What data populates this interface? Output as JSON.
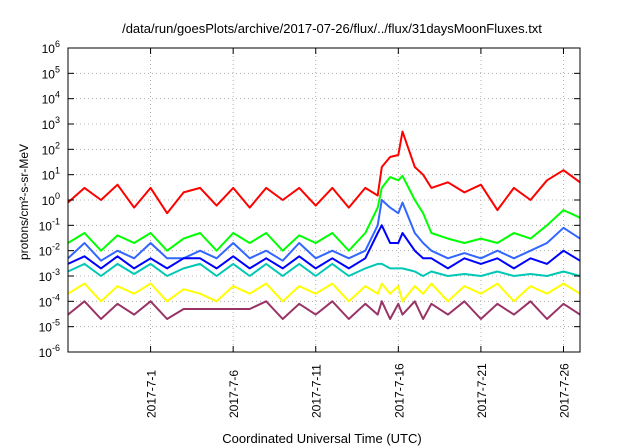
{
  "chart_data": {
    "type": "line",
    "title": "/data/run/goesPlots/archive/2017-07-26/flux/../flux/31daysMoonFluxes.txt",
    "xlabel": "Coordinated Universal Time (UTC)",
    "ylabel": "protons/cm²-s-sr-MeV",
    "yscale": "log",
    "ylim": [
      1e-06,
      1000000.0
    ],
    "xlim": [
      "2017-06-26",
      "2017-07-27"
    ],
    "grid": true,
    "legend": "none",
    "y_ticks": [
      {
        "base": "10",
        "exp": "-6"
      },
      {
        "base": "10",
        "exp": "-5"
      },
      {
        "base": "10",
        "exp": "-4"
      },
      {
        "base": "10",
        "exp": "-3"
      },
      {
        "base": "10",
        "exp": "-2"
      },
      {
        "base": "10",
        "exp": "-1"
      },
      {
        "base": "10",
        "exp": "0"
      },
      {
        "base": "10",
        "exp": "1"
      },
      {
        "base": "10",
        "exp": "2"
      },
      {
        "base": "10",
        "exp": "3"
      },
      {
        "base": "10",
        "exp": "4"
      },
      {
        "base": "10",
        "exp": "5"
      },
      {
        "base": "10",
        "exp": "6"
      }
    ],
    "x_ticks": [
      {
        "date": "2017-07-01",
        "label": "2017-7-1"
      },
      {
        "date": "2017-07-06",
        "label": "2017-7-6"
      },
      {
        "date": "2017-07-11",
        "label": "2017-7-11"
      },
      {
        "date": "2017-07-16",
        "label": "2017-7-16"
      },
      {
        "date": "2017-07-21",
        "label": "2017-7-21"
      },
      {
        "date": "2017-07-26",
        "label": "2017-7-26"
      }
    ],
    "series": [
      {
        "color": "#ff0000",
        "points": [
          [
            "2017-06-26",
            0.8
          ],
          [
            "2017-06-27",
            3
          ],
          [
            "2017-06-28",
            1
          ],
          [
            "2017-06-29",
            4
          ],
          [
            "2017-06-30",
            0.5
          ],
          [
            "2017-07-01",
            3
          ],
          [
            "2017-07-02",
            0.3
          ],
          [
            "2017-07-03",
            2
          ],
          [
            "2017-07-04",
            3
          ],
          [
            "2017-07-05",
            0.6
          ],
          [
            "2017-07-06",
            3
          ],
          [
            "2017-07-07",
            0.5
          ],
          [
            "2017-07-08",
            3
          ],
          [
            "2017-07-09",
            1
          ],
          [
            "2017-07-10",
            3
          ],
          [
            "2017-07-11",
            0.6
          ],
          [
            "2017-07-12",
            3
          ],
          [
            "2017-07-13",
            0.5
          ],
          [
            "2017-07-14",
            3
          ],
          [
            "2017-07-14T18:00",
            1.5
          ],
          [
            "2017-07-15",
            20
          ],
          [
            "2017-07-15T12:00",
            50
          ],
          [
            "2017-07-16",
            60
          ],
          [
            "2017-07-16T06:00",
            500
          ],
          [
            "2017-07-17",
            20
          ],
          [
            "2017-07-17T12:00",
            10
          ],
          [
            "2017-07-18",
            3
          ],
          [
            "2017-07-19",
            5
          ],
          [
            "2017-07-20",
            2
          ],
          [
            "2017-07-21",
            4
          ],
          [
            "2017-07-22",
            0.4
          ],
          [
            "2017-07-23",
            3
          ],
          [
            "2017-07-24",
            1
          ],
          [
            "2017-07-25",
            6
          ],
          [
            "2017-07-26",
            15
          ],
          [
            "2017-07-27",
            5
          ]
        ]
      },
      {
        "color": "#00ff00",
        "points": [
          [
            "2017-06-26",
            0.02
          ],
          [
            "2017-06-27",
            0.05
          ],
          [
            "2017-06-28",
            0.01
          ],
          [
            "2017-06-29",
            0.04
          ],
          [
            "2017-06-30",
            0.02
          ],
          [
            "2017-07-01",
            0.05
          ],
          [
            "2017-07-02",
            0.01
          ],
          [
            "2017-07-03",
            0.03
          ],
          [
            "2017-07-04",
            0.05
          ],
          [
            "2017-07-05",
            0.01
          ],
          [
            "2017-07-06",
            0.05
          ],
          [
            "2017-07-07",
            0.02
          ],
          [
            "2017-07-08",
            0.05
          ],
          [
            "2017-07-09",
            0.01
          ],
          [
            "2017-07-10",
            0.04
          ],
          [
            "2017-07-11",
            0.02
          ],
          [
            "2017-07-12",
            0.05
          ],
          [
            "2017-07-13",
            0.01
          ],
          [
            "2017-07-14",
            0.05
          ],
          [
            "2017-07-14T18:00",
            0.5
          ],
          [
            "2017-07-15",
            3
          ],
          [
            "2017-07-15T12:00",
            8
          ],
          [
            "2017-07-16",
            6
          ],
          [
            "2017-07-16T06:00",
            9
          ],
          [
            "2017-07-17",
            1
          ],
          [
            "2017-07-17T12:00",
            0.3
          ],
          [
            "2017-07-18",
            0.05
          ],
          [
            "2017-07-19",
            0.03
          ],
          [
            "2017-07-20",
            0.02
          ],
          [
            "2017-07-21",
            0.03
          ],
          [
            "2017-07-22",
            0.02
          ],
          [
            "2017-07-23",
            0.05
          ],
          [
            "2017-07-24",
            0.03
          ],
          [
            "2017-07-25",
            0.1
          ],
          [
            "2017-07-26",
            0.4
          ],
          [
            "2017-07-27",
            0.2
          ]
        ]
      },
      {
        "color": "#3366ff",
        "points": [
          [
            "2017-06-26",
            0.005
          ],
          [
            "2017-06-27",
            0.02
          ],
          [
            "2017-06-28",
            0.004
          ],
          [
            "2017-06-29",
            0.01
          ],
          [
            "2017-06-30",
            0.005
          ],
          [
            "2017-07-01",
            0.02
          ],
          [
            "2017-07-02",
            0.005
          ],
          [
            "2017-07-03",
            0.005
          ],
          [
            "2017-07-04",
            0.01
          ],
          [
            "2017-07-05",
            0.005
          ],
          [
            "2017-07-06",
            0.02
          ],
          [
            "2017-07-07",
            0.005
          ],
          [
            "2017-07-08",
            0.01
          ],
          [
            "2017-07-09",
            0.004
          ],
          [
            "2017-07-10",
            0.02
          ],
          [
            "2017-07-11",
            0.005
          ],
          [
            "2017-07-12",
            0.01
          ],
          [
            "2017-07-13",
            0.005
          ],
          [
            "2017-07-14",
            0.01
          ],
          [
            "2017-07-14T18:00",
            0.1
          ],
          [
            "2017-07-15",
            1
          ],
          [
            "2017-07-15T12:00",
            0.5
          ],
          [
            "2017-07-16",
            0.3
          ],
          [
            "2017-07-16T06:00",
            0.8
          ],
          [
            "2017-07-17",
            0.05
          ],
          [
            "2017-07-17T12:00",
            0.02
          ],
          [
            "2017-07-18",
            0.01
          ],
          [
            "2017-07-19",
            0.005
          ],
          [
            "2017-07-20",
            0.008
          ],
          [
            "2017-07-21",
            0.005
          ],
          [
            "2017-07-22",
            0.01
          ],
          [
            "2017-07-23",
            0.005
          ],
          [
            "2017-07-24",
            0.01
          ],
          [
            "2017-07-25",
            0.02
          ],
          [
            "2017-07-26",
            0.08
          ],
          [
            "2017-07-27",
            0.03
          ]
        ]
      },
      {
        "color": "#0000ff",
        "points": [
          [
            "2017-06-26",
            0.003
          ],
          [
            "2017-06-27",
            0.006
          ],
          [
            "2017-06-28",
            0.002
          ],
          [
            "2017-06-29",
            0.006
          ],
          [
            "2017-06-30",
            0.002
          ],
          [
            "2017-07-01",
            0.005
          ],
          [
            "2017-07-02",
            0.002
          ],
          [
            "2017-07-03",
            0.005
          ],
          [
            "2017-07-04",
            0.005
          ],
          [
            "2017-07-05",
            0.002
          ],
          [
            "2017-07-06",
            0.006
          ],
          [
            "2017-07-07",
            0.002
          ],
          [
            "2017-07-08",
            0.005
          ],
          [
            "2017-07-09",
            0.002
          ],
          [
            "2017-07-10",
            0.006
          ],
          [
            "2017-07-11",
            0.002
          ],
          [
            "2017-07-12",
            0.005
          ],
          [
            "2017-07-13",
            0.002
          ],
          [
            "2017-07-14",
            0.005
          ],
          [
            "2017-07-14T18:00",
            0.05
          ],
          [
            "2017-07-15",
            0.1
          ],
          [
            "2017-07-15T12:00",
            0.02
          ],
          [
            "2017-07-16",
            0.02
          ],
          [
            "2017-07-16T06:00",
            0.05
          ],
          [
            "2017-07-17",
            0.01
          ],
          [
            "2017-07-17T12:00",
            0.005
          ],
          [
            "2017-07-18",
            0.005
          ],
          [
            "2017-07-19",
            0.002
          ],
          [
            "2017-07-20",
            0.005
          ],
          [
            "2017-07-21",
            0.003
          ],
          [
            "2017-07-22",
            0.005
          ],
          [
            "2017-07-23",
            0.002
          ],
          [
            "2017-07-24",
            0.005
          ],
          [
            "2017-07-25",
            0.003
          ],
          [
            "2017-07-26",
            0.01
          ],
          [
            "2017-07-27",
            0.004
          ]
        ]
      },
      {
        "color": "#00c8b4",
        "points": [
          [
            "2017-06-26",
            0.0015
          ],
          [
            "2017-06-27",
            0.003
          ],
          [
            "2017-06-28",
            0.001
          ],
          [
            "2017-06-29",
            0.003
          ],
          [
            "2017-06-30",
            0.0012
          ],
          [
            "2017-07-01",
            0.003
          ],
          [
            "2017-07-02",
            0.001
          ],
          [
            "2017-07-03",
            0.002
          ],
          [
            "2017-07-04",
            0.003
          ],
          [
            "2017-07-05",
            0.001
          ],
          [
            "2017-07-06",
            0.003
          ],
          [
            "2017-07-07",
            0.001
          ],
          [
            "2017-07-08",
            0.003
          ],
          [
            "2017-07-09",
            0.001
          ],
          [
            "2017-07-10",
            0.003
          ],
          [
            "2017-07-11",
            0.001
          ],
          [
            "2017-07-12",
            0.003
          ],
          [
            "2017-07-13",
            0.001
          ],
          [
            "2017-07-14",
            0.002
          ],
          [
            "2017-07-14T18:00",
            0.003
          ],
          [
            "2017-07-15",
            0.003
          ],
          [
            "2017-07-15T12:00",
            0.002
          ],
          [
            "2017-07-16",
            0.002
          ],
          [
            "2017-07-16T06:00",
            0.002
          ],
          [
            "2017-07-17",
            0.0015
          ],
          [
            "2017-07-17T12:00",
            0.001
          ],
          [
            "2017-07-18",
            0.0015
          ],
          [
            "2017-07-19",
            0.001
          ],
          [
            "2017-07-20",
            0.0012
          ],
          [
            "2017-07-21",
            0.001
          ],
          [
            "2017-07-22",
            0.0015
          ],
          [
            "2017-07-23",
            0.001
          ],
          [
            "2017-07-24",
            0.0012
          ],
          [
            "2017-07-25",
            0.001
          ],
          [
            "2017-07-26",
            0.0015
          ],
          [
            "2017-07-27",
            0.001
          ]
        ]
      },
      {
        "color": "#ffff00",
        "points": [
          [
            "2017-06-26",
            0.0002
          ],
          [
            "2017-06-27",
            0.0005
          ],
          [
            "2017-06-28",
            0.0001
          ],
          [
            "2017-06-29",
            0.0004
          ],
          [
            "2017-06-30",
            0.0002
          ],
          [
            "2017-07-01",
            0.0005
          ],
          [
            "2017-07-02",
            0.0001
          ],
          [
            "2017-07-03",
            0.0003
          ],
          [
            "2017-07-04",
            0.0002
          ],
          [
            "2017-07-05",
            0.0001
          ],
          [
            "2017-07-06",
            0.0004
          ],
          [
            "2017-07-07",
            0.0002
          ],
          [
            "2017-07-08",
            0.0005
          ],
          [
            "2017-07-09",
            0.0001
          ],
          [
            "2017-07-10",
            0.0004
          ],
          [
            "2017-07-11",
            0.0002
          ],
          [
            "2017-07-12",
            0.0005
          ],
          [
            "2017-07-13",
            0.0001
          ],
          [
            "2017-07-14",
            0.0004
          ],
          [
            "2017-07-14T18:00",
            0.0002
          ],
          [
            "2017-07-15",
            0.0005
          ],
          [
            "2017-07-15T12:00",
            0.0002
          ],
          [
            "2017-07-16",
            0.0004
          ],
          [
            "2017-07-16T06:00",
            0.0001
          ],
          [
            "2017-07-17",
            0.0004
          ],
          [
            "2017-07-17T12:00",
            0.0002
          ],
          [
            "2017-07-18",
            0.0005
          ],
          [
            "2017-07-19",
            0.0001
          ],
          [
            "2017-07-20",
            0.0004
          ],
          [
            "2017-07-21",
            0.0002
          ],
          [
            "2017-07-22",
            0.0005
          ],
          [
            "2017-07-23",
            0.0001
          ],
          [
            "2017-07-24",
            0.0004
          ],
          [
            "2017-07-25",
            0.0002
          ],
          [
            "2017-07-26",
            0.0005
          ],
          [
            "2017-07-27",
            0.0002
          ]
        ]
      },
      {
        "color": "#993366",
        "points": [
          [
            "2017-06-26",
            3e-05
          ],
          [
            "2017-06-27",
            0.0001
          ],
          [
            "2017-06-28",
            2e-05
          ],
          [
            "2017-06-29",
            8e-05
          ],
          [
            "2017-06-30",
            3e-05
          ],
          [
            "2017-07-01",
            0.0001
          ],
          [
            "2017-07-02",
            2e-05
          ],
          [
            "2017-07-03",
            5e-05
          ],
          [
            "2017-07-04",
            5e-05
          ],
          [
            "2017-07-05",
            5e-05
          ],
          [
            "2017-07-06",
            5e-05
          ],
          [
            "2017-07-07",
            5e-05
          ],
          [
            "2017-07-08",
            0.0001
          ],
          [
            "2017-07-09",
            2e-05
          ],
          [
            "2017-07-10",
            8e-05
          ],
          [
            "2017-07-11",
            3e-05
          ],
          [
            "2017-07-12",
            0.0001
          ],
          [
            "2017-07-13",
            2e-05
          ],
          [
            "2017-07-14",
            8e-05
          ],
          [
            "2017-07-14T18:00",
            3e-05
          ],
          [
            "2017-07-15",
            0.0001
          ],
          [
            "2017-07-15T12:00",
            2e-05
          ],
          [
            "2017-07-16",
            8e-05
          ],
          [
            "2017-07-16T06:00",
            3e-05
          ],
          [
            "2017-07-17",
            0.0001
          ],
          [
            "2017-07-17T12:00",
            2e-05
          ],
          [
            "2017-07-18",
            8e-05
          ],
          [
            "2017-07-19",
            3e-05
          ],
          [
            "2017-07-20",
            0.0001
          ],
          [
            "2017-07-21",
            2e-05
          ],
          [
            "2017-07-22",
            8e-05
          ],
          [
            "2017-07-23",
            3e-05
          ],
          [
            "2017-07-24",
            0.0001
          ],
          [
            "2017-07-25",
            2e-05
          ],
          [
            "2017-07-26",
            8e-05
          ],
          [
            "2017-07-27",
            3e-05
          ]
        ]
      }
    ]
  }
}
